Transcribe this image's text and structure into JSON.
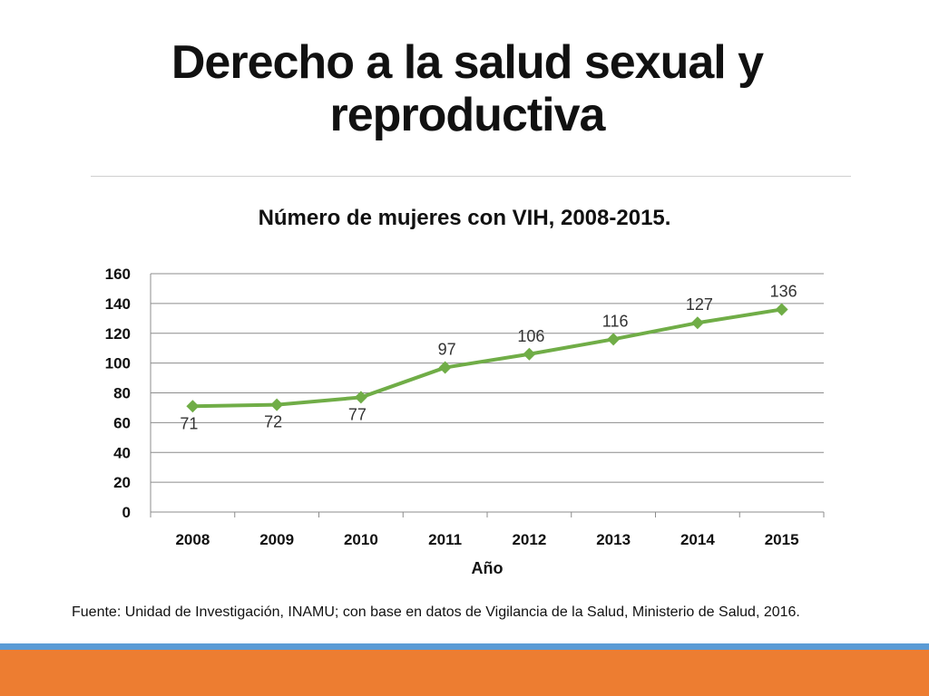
{
  "slide": {
    "title": "Derecho a la salud sexual y reproductiva",
    "source": "Fuente: Unidad de Investigación, INAMU; con base en datos de Vigilancia de la Salud, Ministerio de Salud, 2016."
  },
  "colors": {
    "series": "#70ad47",
    "accent_blue": "#5b9bd5",
    "accent_orange": "#ed7d31"
  },
  "chart_data": {
    "type": "line",
    "title": "Número de mujeres con VIH, 2008-2015.",
    "xlabel": "Año",
    "ylabel": "",
    "categories": [
      "2008",
      "2009",
      "2010",
      "2011",
      "2012",
      "2013",
      "2014",
      "2015"
    ],
    "series": [
      {
        "values": [
          71,
          72,
          77,
          97,
          106,
          116,
          127,
          136
        ],
        "color": "#70ad47",
        "marker": "diamond"
      }
    ],
    "ylim": [
      0,
      160
    ],
    "yticks": [
      0,
      20,
      40,
      60,
      80,
      100,
      120,
      140,
      160
    ],
    "data_labels": true,
    "grid": true,
    "legend": "none"
  }
}
